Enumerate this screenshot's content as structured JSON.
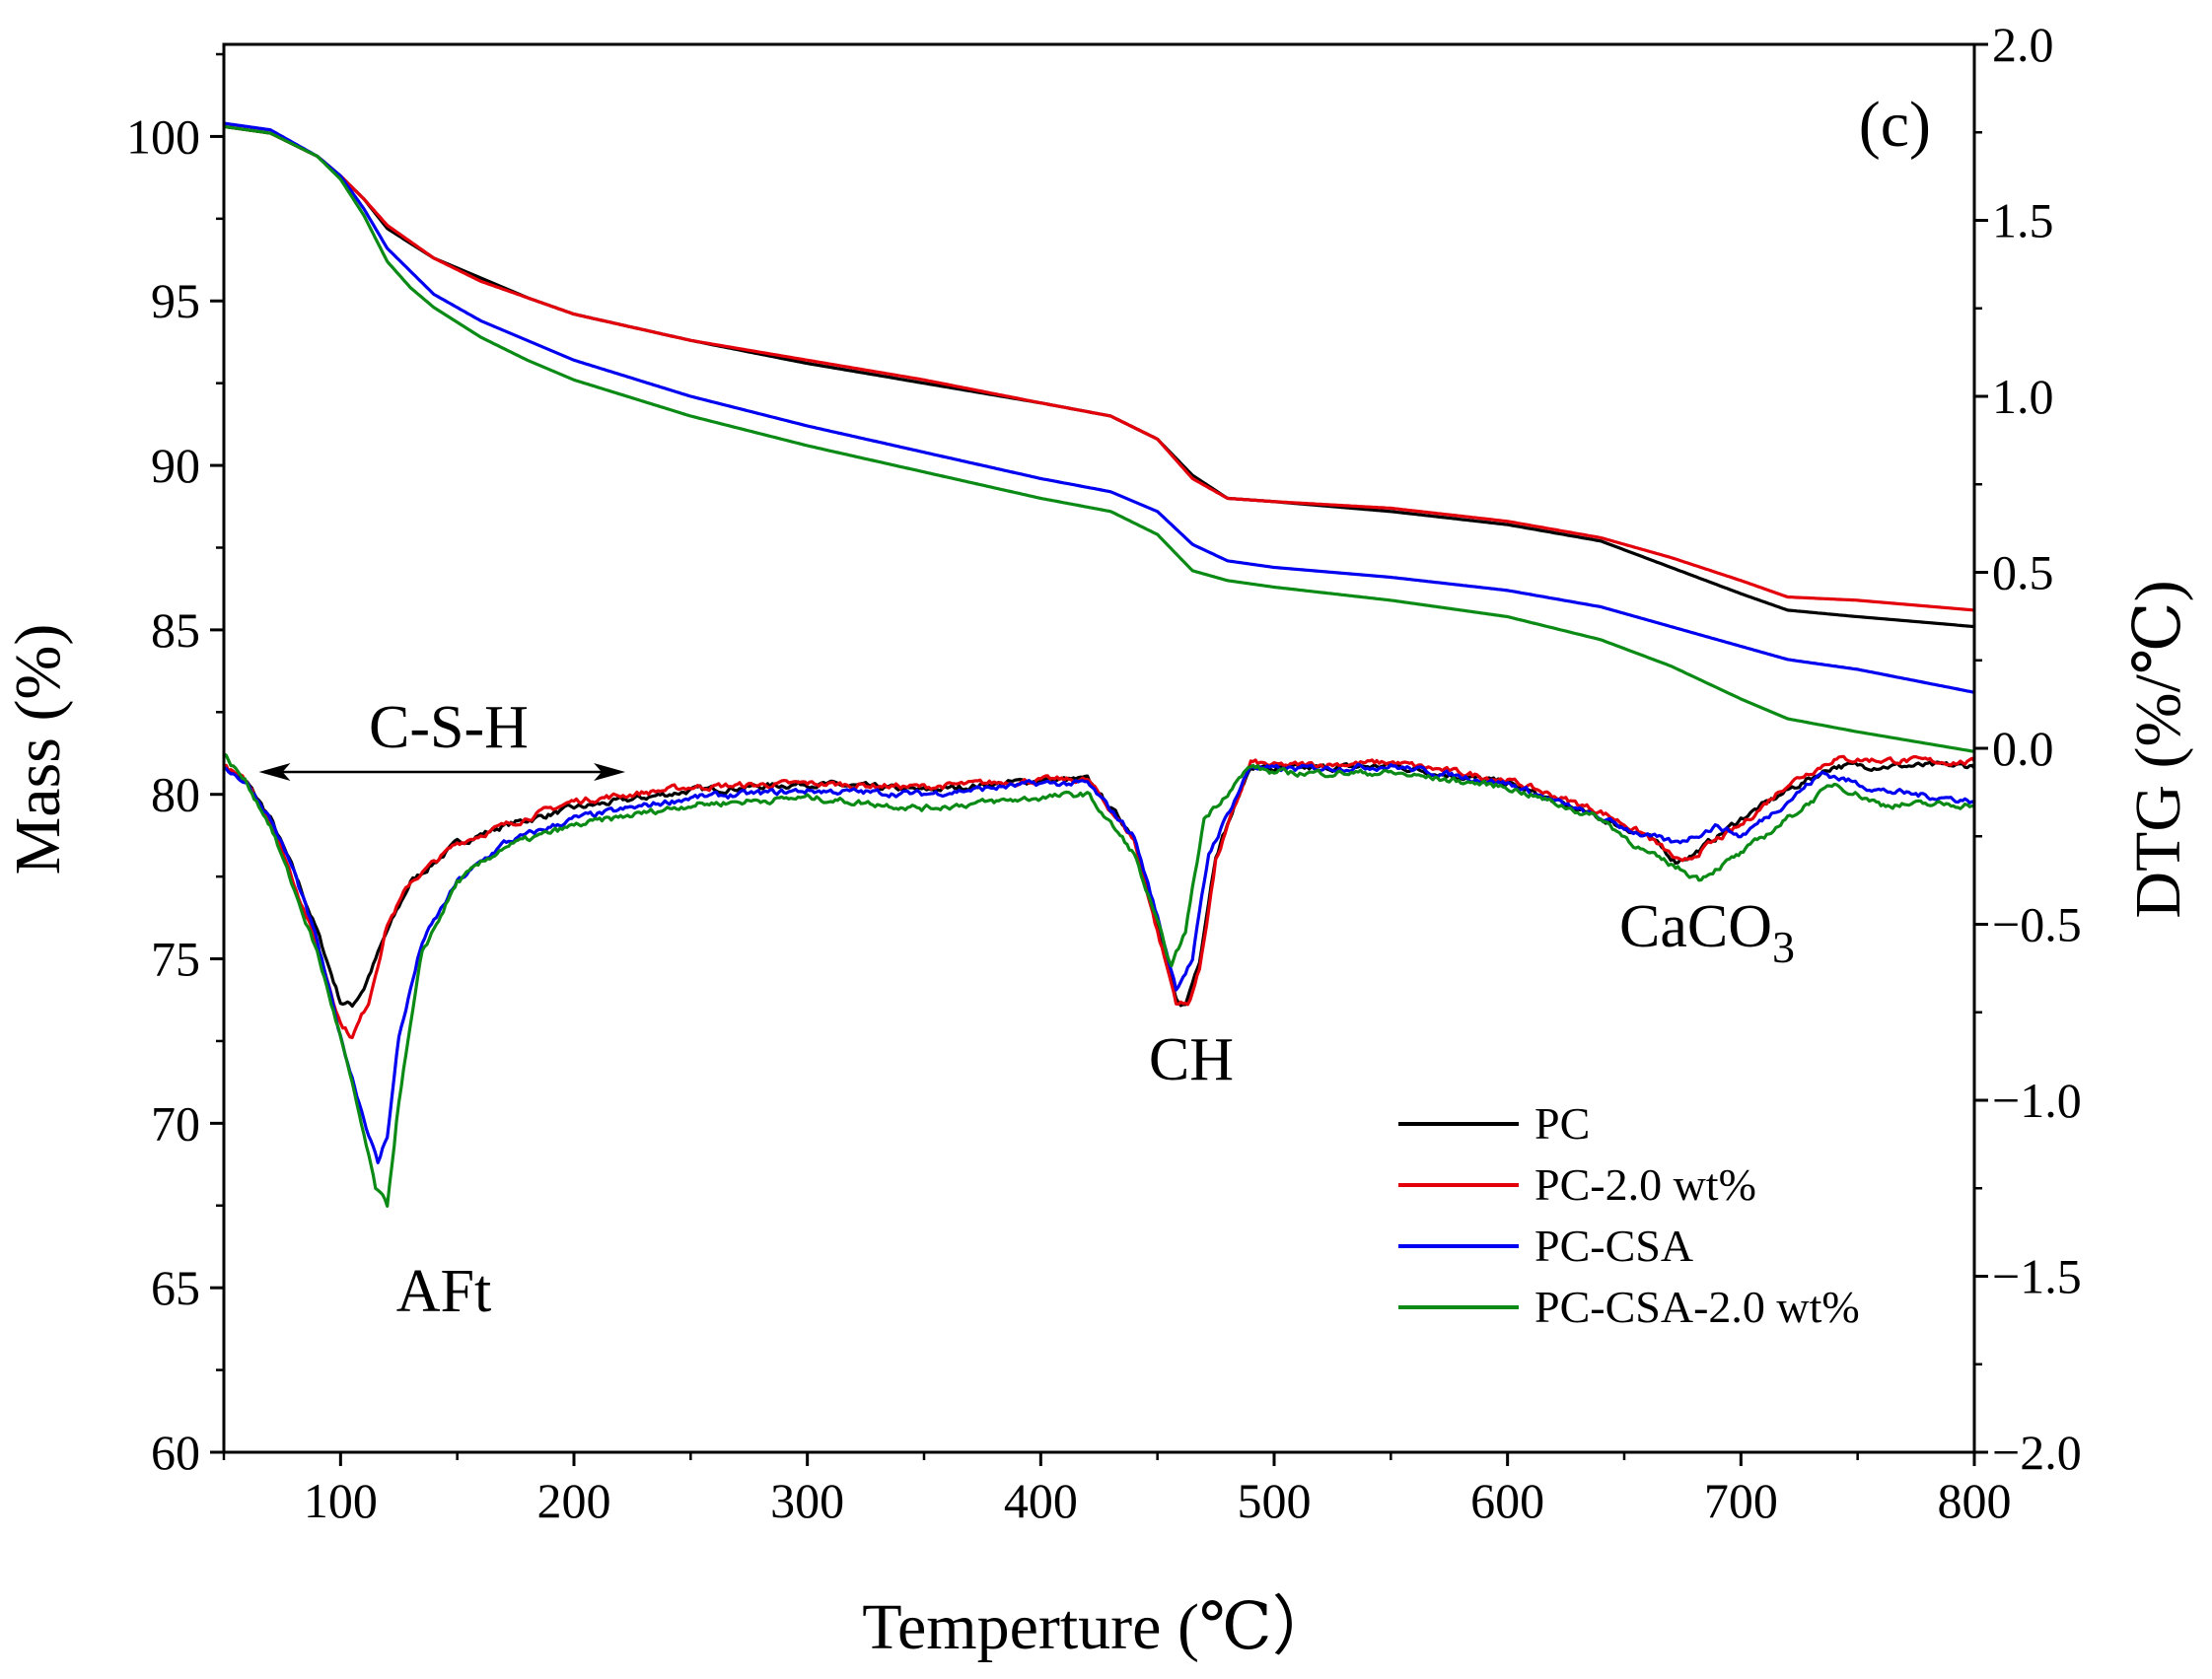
{
  "chart_data": {
    "type": "line",
    "panel_label": "(c)",
    "xlabel": "Temperture (℃）",
    "ylabel_left": "Mass (%)",
    "ylabel_right": "DTG (%/℃)",
    "xlim": [
      50,
      800
    ],
    "ylim_left": [
      60,
      102.8
    ],
    "ylim_right": [
      -2.0,
      2.0
    ],
    "x_ticks": [
      100,
      200,
      300,
      400,
      500,
      600,
      700,
      800
    ],
    "x_tick_labels": [
      "100",
      "200",
      "300",
      "400",
      "500",
      "600",
      "700",
      "800"
    ],
    "y_left_ticks": [
      60,
      65,
      70,
      75,
      80,
      85,
      90,
      95,
      100
    ],
    "y_left_tick_labels": [
      "60",
      "65",
      "70",
      "75",
      "80",
      "85",
      "90",
      "95",
      "100"
    ],
    "y_right_ticks": [
      -2.0,
      -1.5,
      -1.0,
      -0.5,
      0.0,
      0.5,
      1.0,
      1.5,
      2.0
    ],
    "y_right_tick_labels": [
      "−2.0",
      "−1.5",
      "−1.0",
      "−0.5",
      "0.0",
      "0.5",
      "1.0",
      "1.5",
      "2.0"
    ],
    "annotations": {
      "csh": "C-S-H",
      "aft": "AFt",
      "ch": "CH",
      "caco3": "CaCO",
      "caco3_sub": "3"
    },
    "csh_arrow_range": [
      65,
      222
    ],
    "legend_position": "lower-right",
    "series": [
      {
        "name": "PC",
        "color": "#000000",
        "tg": {
          "x": [
            50,
            70,
            90,
            100,
            110,
            120,
            140,
            160,
            180,
            200,
            250,
            300,
            350,
            400,
            430,
            450,
            465,
            480,
            500,
            550,
            600,
            640,
            670,
            700,
            720,
            750,
            800
          ],
          "y": [
            100.3,
            100.1,
            99.4,
            98.8,
            98.1,
            97.2,
            96.3,
            95.7,
            95.1,
            94.6,
            93.8,
            93.1,
            92.5,
            91.9,
            91.5,
            90.8,
            89.7,
            89.0,
            88.9,
            88.6,
            88.2,
            87.7,
            86.9,
            86.1,
            85.6,
            85.4,
            85.1
          ]
        },
        "dtg": {
          "x": [
            50,
            60,
            70,
            80,
            90,
            100,
            105,
            110,
            120,
            130,
            150,
            170,
            200,
            250,
            300,
            350,
            400,
            420,
            440,
            450,
            458,
            462,
            468,
            475,
            490,
            500,
            550,
            600,
            640,
            660,
            672,
            680,
            700,
            720,
            740,
            800
          ],
          "y": [
            -0.05,
            -0.1,
            -0.2,
            -0.35,
            -0.52,
            -0.72,
            -0.73,
            -0.68,
            -0.52,
            -0.38,
            -0.27,
            -0.22,
            -0.17,
            -0.12,
            -0.1,
            -0.12,
            -0.09,
            -0.09,
            -0.25,
            -0.5,
            -0.72,
            -0.73,
            -0.6,
            -0.3,
            -0.05,
            -0.06,
            -0.05,
            -0.1,
            -0.2,
            -0.25,
            -0.32,
            -0.3,
            -0.2,
            -0.12,
            -0.05,
            -0.05
          ]
        }
      },
      {
        "name": "PC-2.0 wt%",
        "color": "#e3000b",
        "tg": {
          "x": [
            50,
            70,
            90,
            100,
            110,
            120,
            140,
            160,
            180,
            200,
            250,
            300,
            350,
            400,
            430,
            450,
            465,
            480,
            500,
            550,
            600,
            640,
            670,
            700,
            720,
            750,
            800
          ],
          "y": [
            100.3,
            100.1,
            99.4,
            98.8,
            98.1,
            97.3,
            96.3,
            95.6,
            95.1,
            94.6,
            93.8,
            93.2,
            92.6,
            91.9,
            91.5,
            90.8,
            89.6,
            89.0,
            88.9,
            88.7,
            88.3,
            87.8,
            87.2,
            86.5,
            86.0,
            85.9,
            85.6
          ]
        },
        "dtg": {
          "x": [
            50,
            60,
            70,
            80,
            90,
            100,
            105,
            112,
            120,
            130,
            150,
            170,
            200,
            250,
            300,
            350,
            400,
            420,
            440,
            450,
            458,
            463,
            468,
            475,
            490,
            500,
            550,
            600,
            640,
            660,
            675,
            685,
            700,
            720,
            740,
            800
          ],
          "y": [
            -0.05,
            -0.1,
            -0.2,
            -0.38,
            -0.56,
            -0.78,
            -0.82,
            -0.72,
            -0.5,
            -0.38,
            -0.27,
            -0.22,
            -0.15,
            -0.11,
            -0.1,
            -0.11,
            -0.09,
            -0.09,
            -0.26,
            -0.52,
            -0.72,
            -0.73,
            -0.63,
            -0.32,
            -0.04,
            -0.05,
            -0.04,
            -0.09,
            -0.18,
            -0.25,
            -0.33,
            -0.28,
            -0.22,
            -0.1,
            -0.03,
            -0.04
          ]
        }
      },
      {
        "name": "PC-CSA",
        "color": "#0000f0",
        "tg": {
          "x": [
            50,
            70,
            90,
            100,
            110,
            120,
            130,
            140,
            160,
            180,
            200,
            250,
            300,
            350,
            400,
            430,
            450,
            465,
            480,
            500,
            550,
            600,
            640,
            670,
            700,
            720,
            750,
            800
          ],
          "y": [
            100.4,
            100.2,
            99.4,
            98.8,
            97.8,
            96.6,
            95.9,
            95.2,
            94.4,
            93.8,
            93.2,
            92.1,
            91.2,
            90.4,
            89.6,
            89.2,
            88.6,
            87.6,
            87.1,
            86.9,
            86.6,
            86.2,
            85.7,
            85.1,
            84.5,
            84.1,
            83.8,
            83.1
          ]
        },
        "dtg": {
          "x": [
            50,
            60,
            70,
            80,
            90,
            100,
            110,
            116,
            120,
            125,
            135,
            150,
            170,
            200,
            250,
            300,
            350,
            400,
            420,
            440,
            450,
            458,
            465,
            472,
            490,
            500,
            550,
            600,
            640,
            660,
            672,
            690,
            700,
            720,
            735,
            760,
            800
          ],
          "y": [
            -0.05,
            -0.1,
            -0.2,
            -0.35,
            -0.55,
            -0.82,
            -1.05,
            -1.18,
            -1.1,
            -0.82,
            -0.55,
            -0.38,
            -0.27,
            -0.2,
            -0.14,
            -0.12,
            -0.13,
            -0.1,
            -0.1,
            -0.25,
            -0.48,
            -0.68,
            -0.6,
            -0.3,
            -0.05,
            -0.06,
            -0.05,
            -0.1,
            -0.2,
            -0.25,
            -0.27,
            -0.22,
            -0.25,
            -0.15,
            -0.07,
            -0.12,
            -0.15
          ]
        }
      },
      {
        "name": "PC-CSA-2.0 wt%",
        "color": "#0b8a15",
        "tg": {
          "x": [
            50,
            70,
            90,
            100,
            110,
            120,
            130,
            140,
            160,
            180,
            200,
            250,
            300,
            350,
            400,
            430,
            450,
            465,
            480,
            500,
            550,
            600,
            640,
            670,
            700,
            720,
            750,
            800
          ],
          "y": [
            100.3,
            100.1,
            99.4,
            98.7,
            97.6,
            96.2,
            95.4,
            94.8,
            93.9,
            93.2,
            92.6,
            91.5,
            90.6,
            89.8,
            89.0,
            88.6,
            87.9,
            86.8,
            86.5,
            86.3,
            85.9,
            85.4,
            84.7,
            83.9,
            82.9,
            82.3,
            81.9,
            81.3
          ]
        },
        "dtg": {
          "x": [
            50,
            60,
            70,
            80,
            90,
            100,
            110,
            115,
            120,
            125,
            135,
            150,
            170,
            200,
            250,
            300,
            350,
            400,
            420,
            440,
            450,
            456,
            462,
            470,
            490,
            500,
            550,
            600,
            640,
            660,
            670,
            682,
            700,
            720,
            740,
            760,
            800
          ],
          "y": [
            -0.02,
            -0.1,
            -0.22,
            -0.4,
            -0.58,
            -0.82,
            -1.1,
            -1.25,
            -1.3,
            -1.0,
            -0.58,
            -0.38,
            -0.28,
            -0.22,
            -0.16,
            -0.14,
            -0.17,
            -0.14,
            -0.13,
            -0.3,
            -0.5,
            -0.62,
            -0.52,
            -0.2,
            -0.05,
            -0.07,
            -0.07,
            -0.11,
            -0.2,
            -0.3,
            -0.33,
            -0.37,
            -0.3,
            -0.2,
            -0.1,
            -0.16,
            -0.16
          ]
        }
      }
    ]
  }
}
